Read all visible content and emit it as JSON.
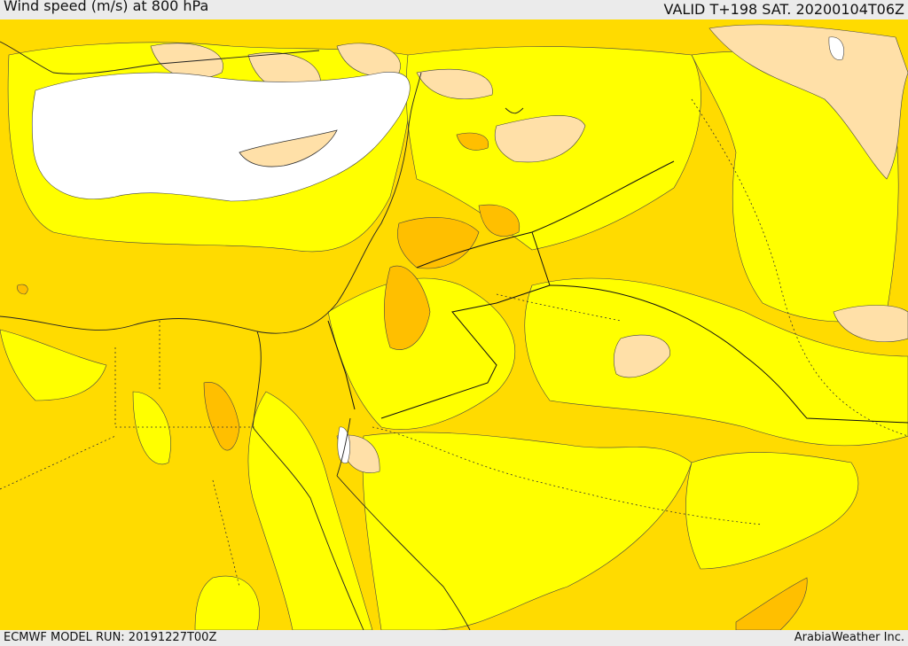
{
  "header": {
    "title": "Wind speed (m/s) at 800 hPa",
    "valid": "VALID T+198 SAT. 20200104T06Z"
  },
  "footer": {
    "model_run": "ECMWF MODEL RUN: 20191227T00Z",
    "credit": "ArabiaWeather Inc."
  },
  "colors": {
    "bright_yellow": "#ffff00",
    "gold": "#ffdb00",
    "amber": "#ffbf00",
    "peach": "#ffe0a8",
    "white": "#ffffff"
  }
}
